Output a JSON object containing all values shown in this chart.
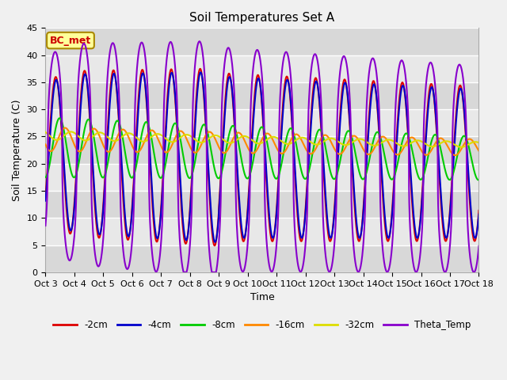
{
  "title": "Soil Temperatures Set A",
  "xlabel": "Time",
  "ylabel": "Soil Temperature (C)",
  "ylim": [
    0,
    45
  ],
  "yticks": [
    0,
    5,
    10,
    15,
    20,
    25,
    30,
    35,
    40,
    45
  ],
  "x_tick_labels": [
    "Oct 3",
    "Oct 4",
    "Oct 5",
    "Oct 6",
    "Oct 7",
    "Oct 8",
    "Oct 9",
    "Oct 10",
    "Oct 11",
    "Oct 12",
    "Oct 13",
    "Oct 14",
    "Oct 15",
    "Oct 16",
    "Oct 17",
    "Oct 18"
  ],
  "series": {
    "-2cm": {
      "color": "#dd0000",
      "lw": 1.5
    },
    "-4cm": {
      "color": "#0000cc",
      "lw": 1.5
    },
    "-8cm": {
      "color": "#00cc00",
      "lw": 1.5
    },
    "-16cm": {
      "color": "#ff8800",
      "lw": 1.5
    },
    "-32cm": {
      "color": "#dddd00",
      "lw": 1.5
    },
    "Theta_Temp": {
      "color": "#8800cc",
      "lw": 1.5
    }
  },
  "bg_color": "#f0f0f0",
  "plot_bg_light": "#e8e8e8",
  "plot_bg_dark": "#d8d8d8",
  "annotation_text": "BC_met",
  "annotation_color": "#cc0000",
  "annotation_bg": "#ffff99",
  "annotation_border": "#aa8800",
  "n_days": 15,
  "pts_per_day": 120
}
